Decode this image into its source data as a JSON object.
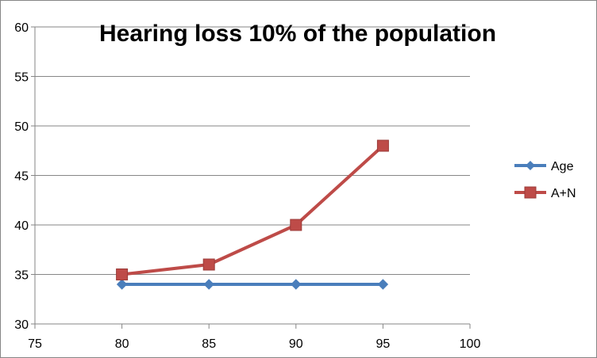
{
  "chart_data": {
    "type": "line",
    "title": "Hearing loss 10% of the population",
    "xlabel": "",
    "ylabel": "",
    "xlim": [
      75,
      100
    ],
    "ylim": [
      30,
      60
    ],
    "x_ticks": [
      "75",
      "80",
      "85",
      "90",
      "95",
      "100"
    ],
    "y_ticks": [
      "30",
      "35",
      "40",
      "45",
      "50",
      "55",
      "60"
    ],
    "grid": "horizontal",
    "legend_position": "right",
    "series": [
      {
        "name": "Age",
        "x": [
          80,
          85,
          90,
          95
        ],
        "y": [
          34,
          34,
          34,
          34
        ],
        "color": "#4a7ebb",
        "marker": "diamond"
      },
      {
        "name": "A+N",
        "x": [
          80,
          85,
          90,
          95
        ],
        "y": [
          35,
          36,
          40,
          48
        ],
        "color": "#be4b48",
        "marker": "square"
      }
    ]
  }
}
